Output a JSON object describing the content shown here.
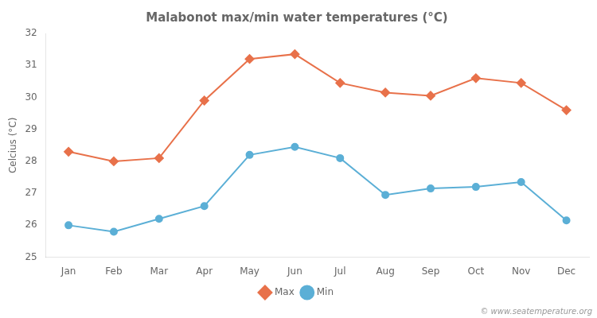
{
  "chart_data": {
    "type": "line",
    "title": "Malabonot max/min water temperatures (°C)",
    "ylabel": "Celcius (°C)",
    "annotation": "© www.seatemperature.org",
    "categories": [
      "Jan",
      "Feb",
      "Mar",
      "Apr",
      "May",
      "Jun",
      "Jul",
      "Aug",
      "Sep",
      "Oct",
      "Nov",
      "Dec"
    ],
    "series": [
      {
        "name": "Max",
        "color": "#e8714a",
        "marker": "diamond",
        "values": [
          28.3,
          28.0,
          28.1,
          29.9,
          31.2,
          31.35,
          30.45,
          30.15,
          30.05,
          30.6,
          30.45,
          29.6
        ]
      },
      {
        "name": "Min",
        "color": "#5bafd6",
        "marker": "circle",
        "values": [
          26.0,
          25.8,
          26.2,
          26.6,
          28.2,
          28.45,
          28.1,
          26.95,
          27.15,
          27.2,
          27.35,
          26.15
        ]
      }
    ],
    "ylim": [
      25,
      32
    ],
    "yticks": [
      25,
      26,
      27,
      28,
      29,
      30,
      31,
      32
    ],
    "grid": false,
    "legend": "bottom"
  }
}
